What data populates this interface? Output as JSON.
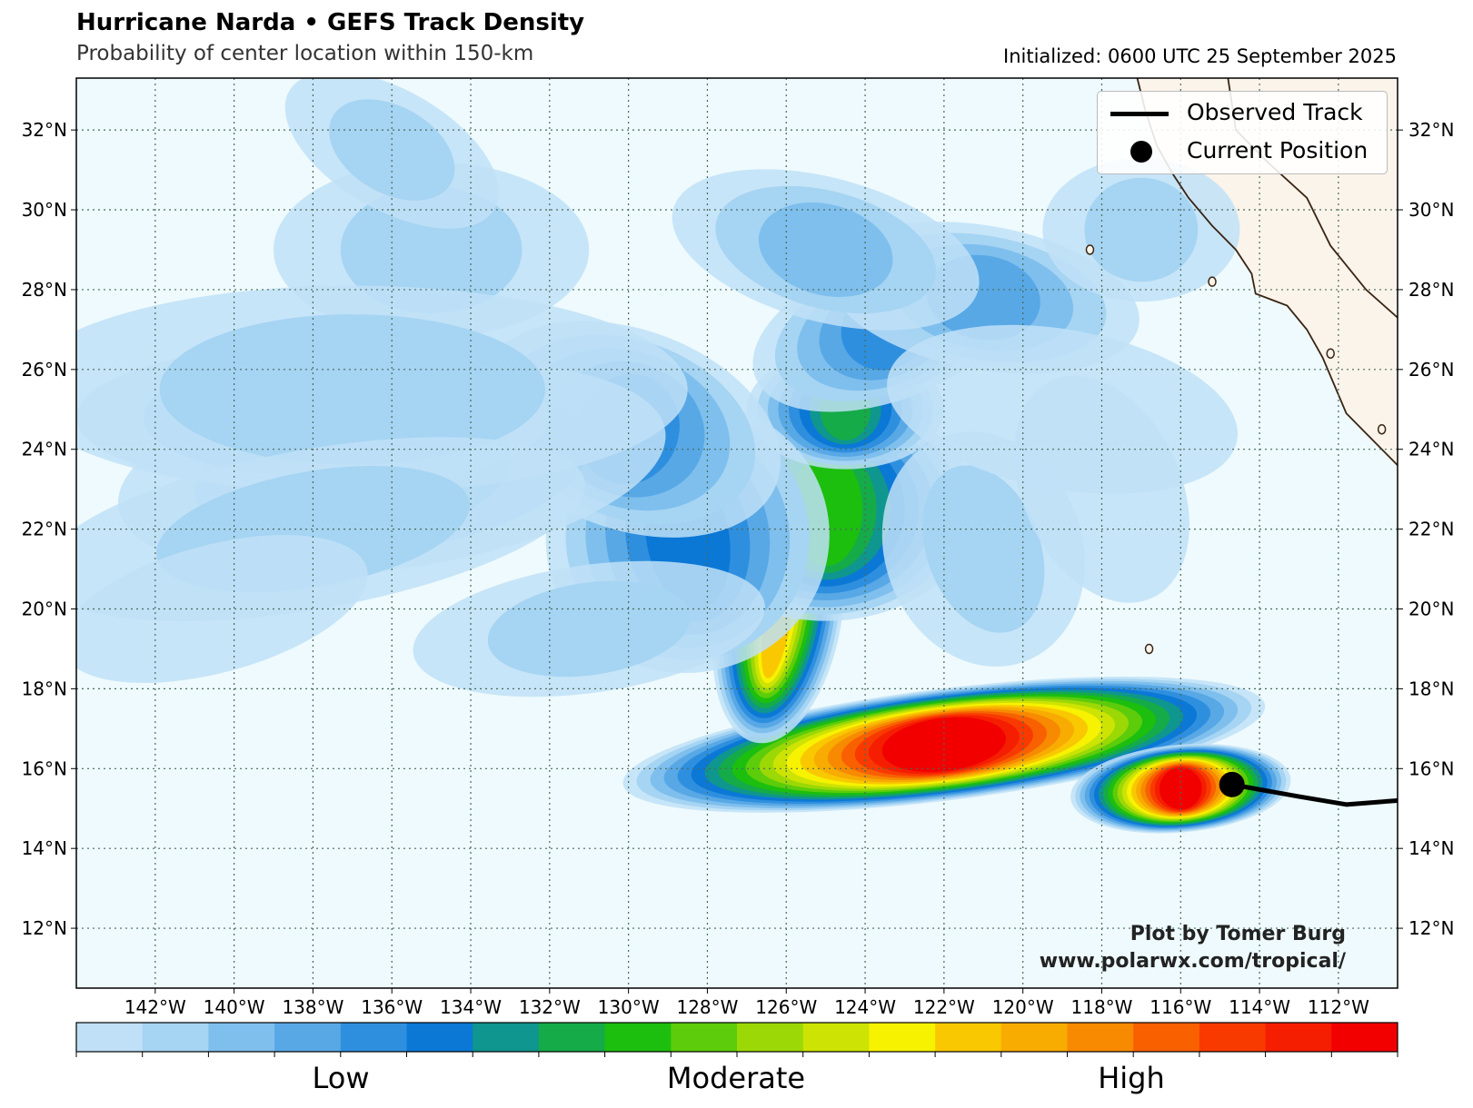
{
  "title": "Hurricane Narda • GEFS Track Density",
  "subtitle": "Probability of center location within 150-km",
  "initialized": "Initialized: 0600 UTC 25 September 2025",
  "legend": {
    "observed_track": "Observed Track",
    "current_position": "Current Position"
  },
  "credit": {
    "line1": "Plot by Tomer Burg",
    "line2": "www.polarwx.com/tropical/"
  },
  "map": {
    "lon_range": [
      -144,
      -110.5
    ],
    "lat_range": [
      10.5,
      33.3
    ],
    "lon_ticks": [
      "142°W",
      "140°W",
      "138°W",
      "136°W",
      "134°W",
      "132°W",
      "130°W",
      "128°W",
      "126°W",
      "124°W",
      "122°W",
      "120°W",
      "118°W",
      "116°W",
      "114°W",
      "112°W"
    ],
    "lon_tick_values": [
      -142,
      -140,
      -138,
      -136,
      -134,
      -132,
      -130,
      -128,
      -126,
      -124,
      -122,
      -120,
      -118,
      -116,
      -114,
      -112
    ],
    "lat_ticks": [
      "12°N",
      "14°N",
      "16°N",
      "18°N",
      "20°N",
      "22°N",
      "24°N",
      "26°N",
      "28°N",
      "30°N",
      "32°N"
    ],
    "lat_tick_values": [
      12,
      14,
      16,
      18,
      20,
      22,
      24,
      26,
      28,
      30,
      32
    ],
    "ocean_color": "#eefafd",
    "land_color": "#faf4ea",
    "coast_color": "#3a2414",
    "current_position": {
      "lon": -114.7,
      "lat": 15.6
    },
    "observed_track": [
      [
        -114.7,
        15.6
      ],
      [
        -113.0,
        15.3
      ],
      [
        -111.8,
        15.1
      ],
      [
        -110.5,
        15.2
      ]
    ]
  },
  "colorbar": {
    "colors": [
      "#bfe0f7",
      "#a6d4f3",
      "#7fbfed",
      "#58a8e6",
      "#2f8fdf",
      "#0b78d6",
      "#0f968e",
      "#15ab48",
      "#1cbf0e",
      "#5ccc0b",
      "#9bd806",
      "#cde303",
      "#f7f200",
      "#f9c800",
      "#f8ab00",
      "#f78a00",
      "#f86000",
      "#f83a00",
      "#f51e00",
      "#f20000"
    ],
    "labels": [
      "Low",
      "Moderate",
      "High"
    ]
  },
  "density": {
    "blobs": [
      {
        "lon": -122.0,
        "lat": 16.6,
        "rx": 8.2,
        "ry": 1.4,
        "rot": -7,
        "level": 19
      },
      {
        "lon": -116.0,
        "lat": 15.5,
        "rx": 2.8,
        "ry": 1.1,
        "rot": -5,
        "level": 19
      },
      {
        "lon": -126.2,
        "lat": 19.8,
        "rx": 1.6,
        "ry": 3.2,
        "rot": 10,
        "level": 13
      },
      {
        "lon": -125.0,
        "lat": 22.5,
        "rx": 3.8,
        "ry": 2.8,
        "rot": 0,
        "level": 8
      },
      {
        "lon": -124.5,
        "lat": 25.0,
        "rx": 2.5,
        "ry": 1.5,
        "rot": 0,
        "level": 7
      },
      {
        "lon": -128.5,
        "lat": 21.8,
        "rx": 3.6,
        "ry": 3.4,
        "rot": -10,
        "level": 5
      },
      {
        "lon": -130.0,
        "lat": 24.5,
        "rx": 4.0,
        "ry": 2.5,
        "rot": 20,
        "level": 4
      },
      {
        "lon": -136.0,
        "lat": 23.5,
        "rx": 7.0,
        "ry": 2.5,
        "rot": -8,
        "level": 2
      },
      {
        "lon": -138.0,
        "lat": 24.8,
        "rx": 6.0,
        "ry": 1.8,
        "rot": 0,
        "level": 2
      },
      {
        "lon": -123.5,
        "lat": 27.0,
        "rx": 3.5,
        "ry": 1.8,
        "rot": -20,
        "level": 4
      },
      {
        "lon": -121.0,
        "lat": 27.8,
        "rx": 4.0,
        "ry": 1.8,
        "rot": 10,
        "level": 3
      },
      {
        "lon": -125.0,
        "lat": 29.0,
        "rx": 4.0,
        "ry": 1.8,
        "rot": 15,
        "level": 2
      },
      {
        "lon": -135.0,
        "lat": 29.0,
        "rx": 4.0,
        "ry": 2.2,
        "rot": 0,
        "level": 1
      },
      {
        "lon": -136.0,
        "lat": 31.5,
        "rx": 3.0,
        "ry": 1.5,
        "rot": 30,
        "level": 1
      },
      {
        "lon": -137.0,
        "lat": 25.5,
        "rx": 8.5,
        "ry": 2.6,
        "rot": 0,
        "level": 1
      },
      {
        "lon": -138.0,
        "lat": 22.0,
        "rx": 7.0,
        "ry": 2.0,
        "rot": -10,
        "level": 1
      },
      {
        "lon": -140.5,
        "lat": 20.0,
        "rx": 4.0,
        "ry": 1.6,
        "rot": -15,
        "level": 0
      },
      {
        "lon": -131.0,
        "lat": 19.5,
        "rx": 4.5,
        "ry": 1.6,
        "rot": -8,
        "level": 1
      },
      {
        "lon": -121.0,
        "lat": 21.5,
        "rx": 2.5,
        "ry": 3.0,
        "rot": -20,
        "level": 1
      },
      {
        "lon": -118.0,
        "lat": 23.0,
        "rx": 2.0,
        "ry": 3.0,
        "rot": -25,
        "level": 0
      },
      {
        "lon": -117.0,
        "lat": 29.5,
        "rx": 2.5,
        "ry": 1.8,
        "rot": 0,
        "level": 1
      },
      {
        "lon": -119.0,
        "lat": 25.0,
        "rx": 4.5,
        "ry": 2.0,
        "rot": 10,
        "level": 0
      }
    ]
  }
}
